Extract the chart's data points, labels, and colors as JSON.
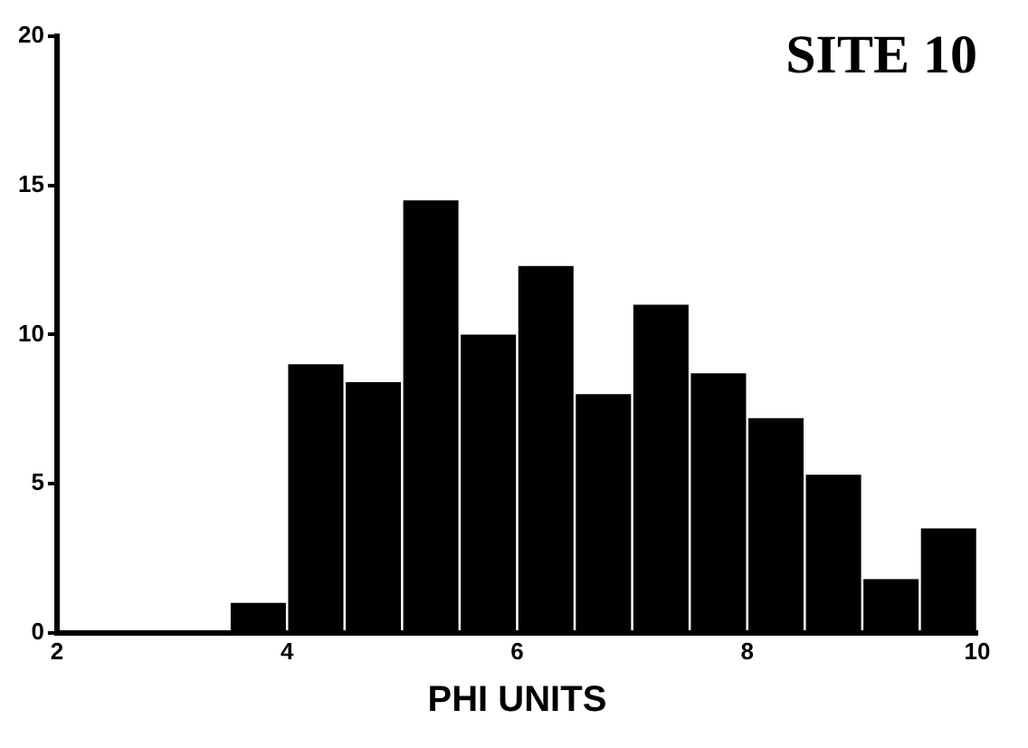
{
  "chart_data": {
    "type": "histogram",
    "title": "SITE 10",
    "xlabel": "PHI UNITS",
    "bins": [
      3.5,
      4,
      4.5,
      5,
      5.5,
      6,
      6.5,
      7,
      7.5,
      8,
      8.5,
      9,
      9.5,
      10
    ],
    "values": [
      1,
      9,
      8.4,
      14.5,
      10,
      12.3,
      8,
      11,
      8.7,
      7.2,
      5.3,
      1.8,
      3.5
    ],
    "color": "#000000",
    "xlim": [
      2,
      10
    ],
    "xticks": [
      2,
      4,
      6,
      8,
      10
    ],
    "ylim": [
      0,
      20
    ],
    "yticks": [
      0,
      5,
      10,
      15,
      20
    ],
    "grid": false,
    "legend": false
  }
}
